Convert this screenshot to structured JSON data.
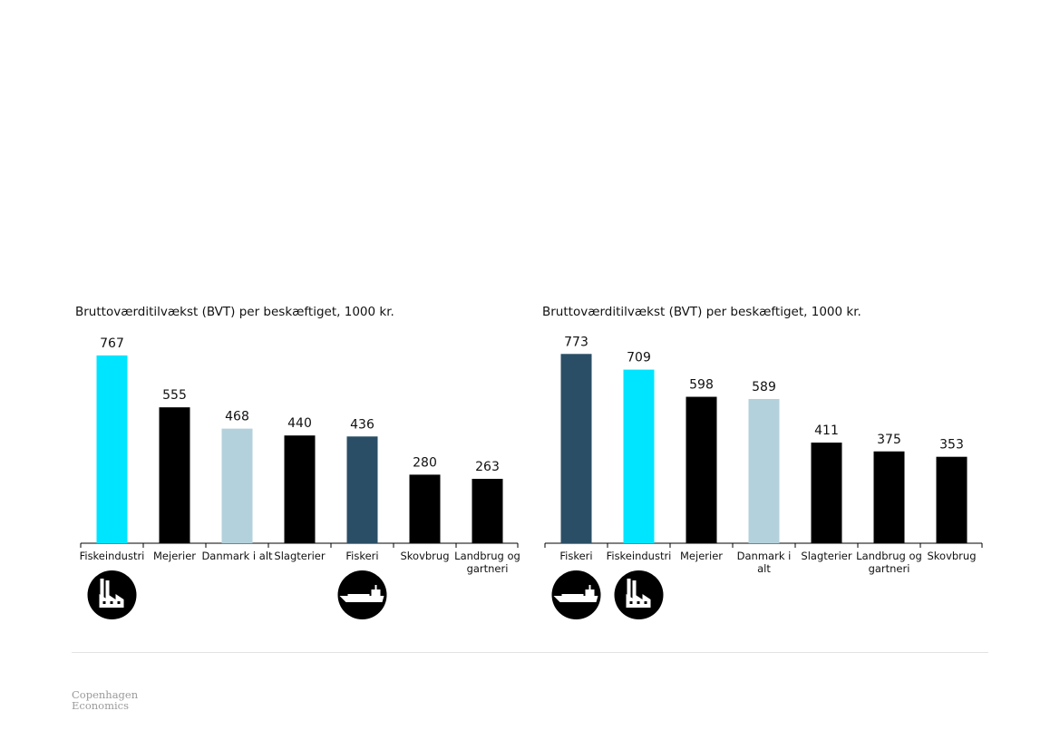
{
  "colors": {
    "cyan": "#00e5ff",
    "black": "#000000",
    "lightblue": "#b3d1dc",
    "navy": "#2a4e65"
  },
  "chart_data": [
    {
      "type": "bar",
      "title": "Bruttoværditilvækst (BVT) per beskæftiget, 1000 kr.",
      "categories": [
        "Fiskeindustri",
        "Mejerier",
        "Danmark i alt",
        "Slagterier",
        "Fiskeri",
        "Skovbrug",
        "Landbrug og gartneri"
      ],
      "values": [
        767,
        555,
        468,
        440,
        436,
        280,
        263
      ],
      "bar_colors": [
        "cyan",
        "black",
        "lightblue",
        "black",
        "navy",
        "black",
        "black"
      ],
      "icons": [
        "factory-icon",
        "",
        "",
        "",
        "ship-icon",
        "",
        ""
      ],
      "ylim": [
        0,
        800
      ]
    },
    {
      "type": "bar",
      "title": "Bruttoværditilvækst (BVT) per beskæftiget, 1000 kr.",
      "categories": [
        "Fiskeri",
        "Fiskeindustri",
        "Mejerier",
        "Danmark i alt",
        "Slagterier",
        "Landbrug og gartneri",
        "Skovbrug"
      ],
      "values": [
        773,
        709,
        598,
        589,
        411,
        375,
        353
      ],
      "bar_colors": [
        "navy",
        "cyan",
        "black",
        "lightblue",
        "black",
        "black",
        "black"
      ],
      "icons": [
        "ship-icon",
        "factory-icon",
        "",
        "",
        "",
        "",
        ""
      ],
      "ylim": [
        0,
        800
      ]
    }
  ],
  "footer": {
    "logo_line1": "Copenhagen",
    "logo_line2": "Economics"
  }
}
